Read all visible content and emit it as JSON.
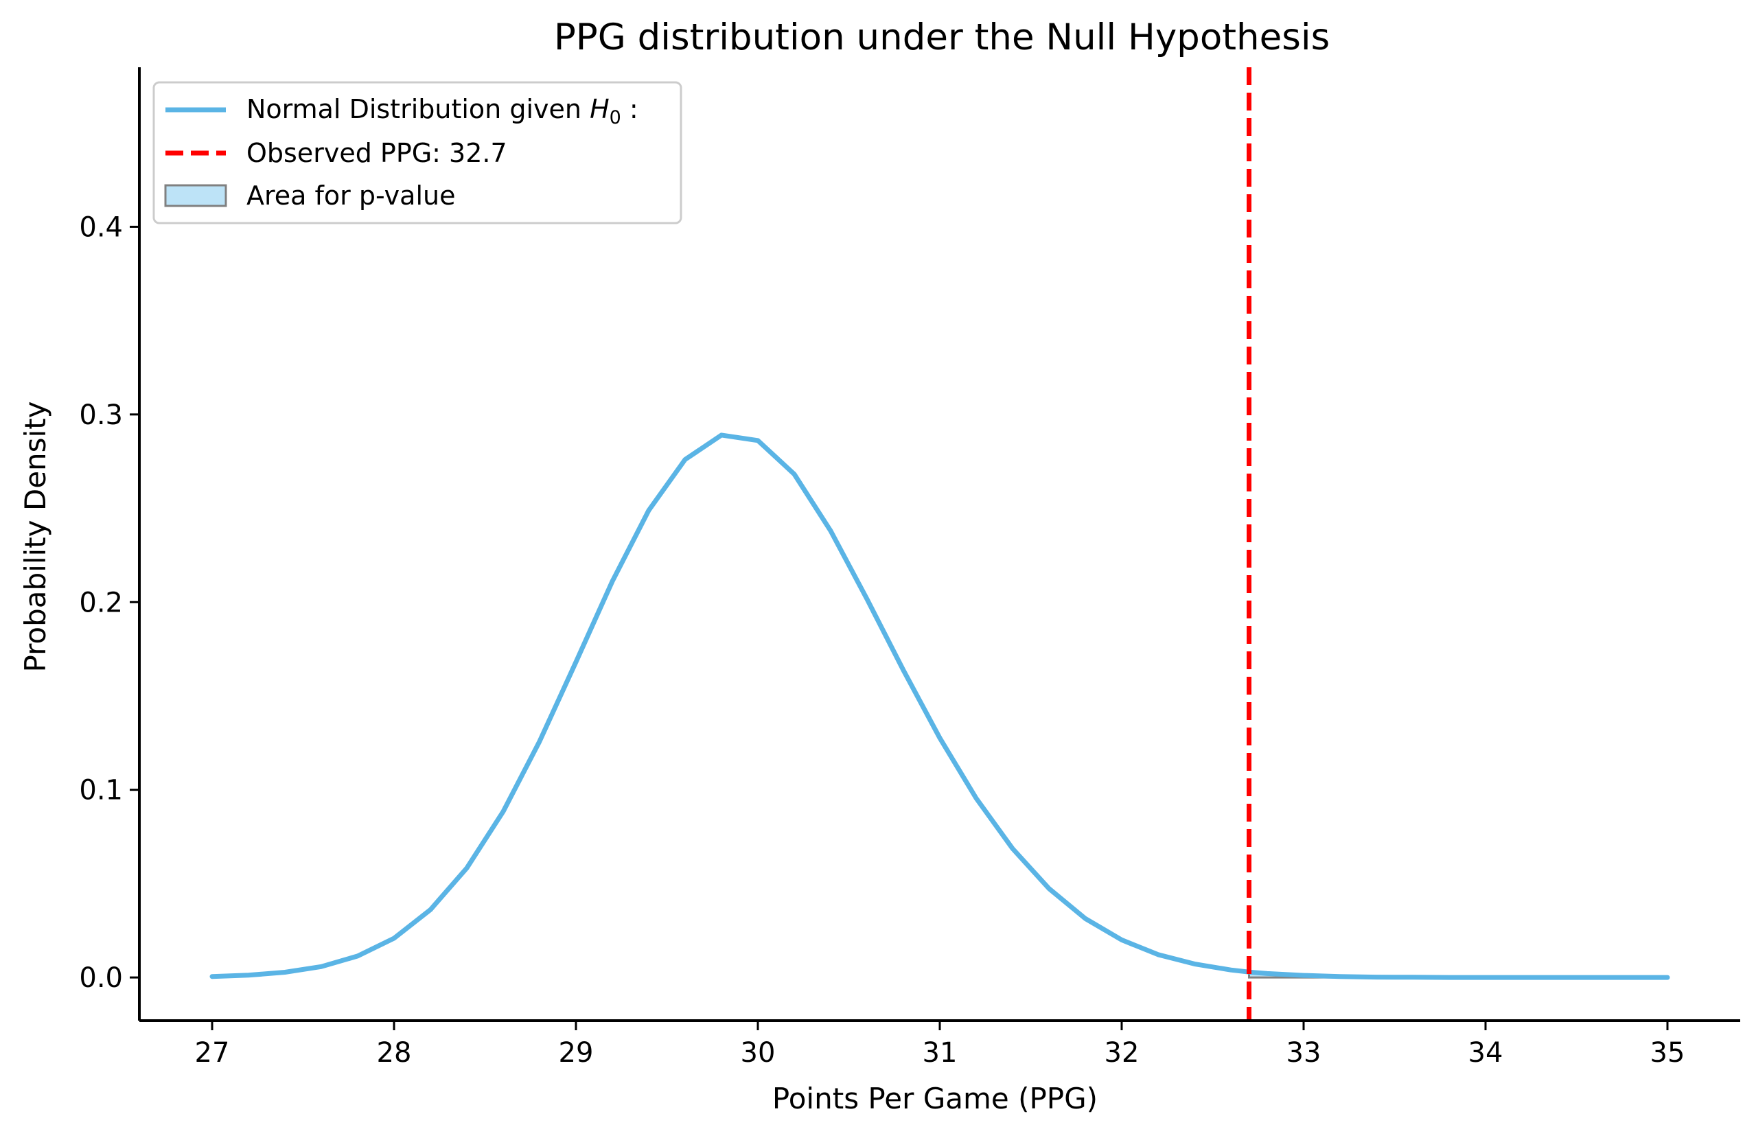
{
  "chart_data": {
    "type": "line",
    "title": "PPG distribution under the Null Hypothesis",
    "xlabel": "Points Per Game (PPG)",
    "ylabel": "Probability Density",
    "xlim": [
      26.6,
      35.4
    ],
    "ylim": [
      -0.023,
      0.485
    ],
    "xticks": [
      27,
      28,
      29,
      30,
      31,
      32,
      33,
      34,
      35
    ],
    "xtick_labels": [
      "27",
      "28",
      "29",
      "30",
      "31",
      "32",
      "33",
      "34",
      "35"
    ],
    "yticks": [
      0.0,
      0.1,
      0.2,
      0.3,
      0.4
    ],
    "ytick_labels": [
      "0.0",
      "0.1",
      "0.2",
      "0.3",
      "0.4"
    ],
    "grid": false,
    "legend": {
      "placement": "upper-left",
      "entries": [
        {
          "label_prefix": "Normal Distribution given ",
          "label_math": "H",
          "label_sub": "0",
          "label_suffix": " :",
          "style": "line"
        },
        {
          "label": "Observed PPG: 32.7",
          "style": "dashed-line"
        },
        {
          "label": "Area for p-value",
          "style": "patch"
        }
      ]
    },
    "series": [
      {
        "type": "line",
        "x": [
          27.0,
          27.2,
          27.4,
          27.6,
          27.8,
          28.0,
          28.2,
          28.4,
          28.6,
          28.8,
          29.0,
          29.2,
          29.4,
          29.6,
          29.8,
          30.0,
          30.2,
          30.4,
          30.6,
          30.8,
          31.0,
          31.2,
          31.4,
          31.6,
          31.8,
          32.0,
          32.2,
          32.4,
          32.6,
          32.7,
          32.8,
          33.0,
          33.2,
          33.4,
          33.6,
          33.8,
          34.0,
          34.2,
          34.4,
          34.6,
          34.8,
          35.0
        ],
        "y": [
          0.0005,
          0.0012,
          0.0028,
          0.0058,
          0.0114,
          0.0209,
          0.0361,
          0.0583,
          0.0884,
          0.1258,
          0.1681,
          0.2111,
          0.2489,
          0.276,
          0.289,
          0.2861,
          0.2682,
          0.238,
          0.2016,
          0.1637,
          0.1276,
          0.0955,
          0.0687,
          0.0474,
          0.0314,
          0.02,
          0.0122,
          0.0072,
          0.004,
          0.0029,
          0.0021,
          0.0011,
          0.0005,
          0.0002,
          0.0001,
          0.0,
          0.0,
          0.0,
          0.0,
          0.0,
          0.0,
          0.0
        ]
      }
    ],
    "vline": {
      "x": 32.7
    },
    "shaded_region": {
      "from": 32.7,
      "to": 35.0
    },
    "colors": {
      "curve": "#5ab4e5",
      "vline": "#ff0000",
      "fill": "#bde3f7",
      "fill_edge": "#808080",
      "axis": "#000000",
      "legend_frame": "#cccccc"
    }
  }
}
